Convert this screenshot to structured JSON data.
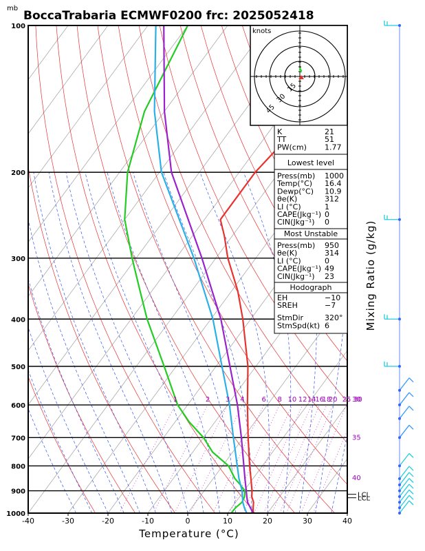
{
  "chart_data": {
    "type": "line",
    "title": "BoccaTrabaria ECMWF0200 frc: 2025052418",
    "y_unit_label": "mb",
    "xlabel": "Temperature (°C)",
    "right_label": "Mixing Ratio (g/kg)",
    "xlim": [
      -40,
      40
    ],
    "ylim": [
      1000,
      100
    ],
    "y_scale": "log",
    "x_ticks": [
      -40,
      -30,
      -20,
      -10,
      0,
      10,
      20,
      30,
      40
    ],
    "pressure_ticks": [
      100,
      200,
      300,
      400,
      500,
      600,
      700,
      800,
      900,
      1000
    ],
    "skew_deg_per_decade": 90,
    "series": [
      {
        "name": "Temperature",
        "color": "#e8322d",
        "points": [
          [
            1000,
            16.4
          ],
          [
            975,
            15.4
          ],
          [
            950,
            14.5
          ],
          [
            925,
            13.0
          ],
          [
            900,
            12.0
          ],
          [
            850,
            9.5
          ],
          [
            800,
            6.8
          ],
          [
            700,
            1.2
          ],
          [
            600,
            -5.0
          ],
          [
            500,
            -12.0
          ],
          [
            400,
            -22.0
          ],
          [
            350,
            -28.5
          ],
          [
            300,
            -37.0
          ],
          [
            270,
            -42.0
          ],
          [
            250,
            -46.0
          ],
          [
            200,
            -46.0
          ],
          [
            150,
            -43.0
          ],
          [
            100,
            -42.0
          ]
        ]
      },
      {
        "name": "Dewpoint",
        "color": "#22cc22",
        "points": [
          [
            1000,
            10.9
          ],
          [
            975,
            11.0
          ],
          [
            950,
            11.6
          ],
          [
            925,
            11.2
          ],
          [
            900,
            10.2
          ],
          [
            870,
            7.5
          ],
          [
            850,
            5.5
          ],
          [
            800,
            1.5
          ],
          [
            750,
            -5.0
          ],
          [
            700,
            -10.0
          ],
          [
            650,
            -16.5
          ],
          [
            600,
            -22.5
          ],
          [
            500,
            -33.0
          ],
          [
            400,
            -46.0
          ],
          [
            350,
            -53.0
          ],
          [
            300,
            -61.0
          ],
          [
            250,
            -70.0
          ],
          [
            200,
            -78.0
          ],
          [
            150,
            -85.0
          ],
          [
            100,
            -90.0
          ]
        ]
      },
      {
        "name": "Parcel",
        "color": "#9922cc",
        "points": [
          [
            1000,
            16.4
          ],
          [
            950,
            13.0
          ],
          [
            930,
            12.0
          ],
          [
            850,
            8.0
          ],
          [
            700,
            -0.5
          ],
          [
            600,
            -7.5
          ],
          [
            500,
            -16.5
          ],
          [
            400,
            -27.5
          ],
          [
            300,
            -43.5
          ],
          [
            200,
            -67.0
          ],
          [
            150,
            -80.0
          ],
          [
            100,
            -96.0
          ]
        ]
      },
      {
        "name": "Virtual Temperature",
        "color": "#2ab0e6",
        "points": [
          [
            1000,
            14.8
          ],
          [
            975,
            13.2
          ],
          [
            950,
            11.8
          ],
          [
            900,
            9.5
          ],
          [
            850,
            6.5
          ],
          [
            700,
            -2.5
          ],
          [
            600,
            -9.5
          ],
          [
            500,
            -18.5
          ],
          [
            400,
            -29.5
          ],
          [
            300,
            -45.5
          ],
          [
            200,
            -69.5
          ],
          [
            150,
            -82.5
          ],
          [
            100,
            -98.0
          ]
        ]
      }
    ],
    "mixing_ratio_labels": [
      "1",
      "2",
      "3",
      "4",
      "6",
      "8",
      "10",
      "12",
      "14",
      "16",
      "18",
      "20",
      "25",
      "30"
    ],
    "theta_labels": [
      "30",
      "35",
      "40"
    ],
    "lcl_labels": [
      "LCL",
      "LCL"
    ],
    "hodograph": {
      "unit_label": "knots",
      "rings": [
        "15",
        "30",
        "45"
      ],
      "segments": [
        [
          -0.5,
          -8
        ],
        [
          0.5,
          -12
        ],
        [
          -1.5,
          -14
        ],
        [
          -2.5,
          -12
        ],
        [
          -3,
          -15
        ],
        [
          -1,
          -18
        ]
      ],
      "storm_motion_kt": 6,
      "storm_dir_deg": 320
    },
    "index_panel": {
      "general": [
        [
          "K",
          "21"
        ],
        [
          "TT",
          "51"
        ],
        [
          "PW(cm)",
          "1.77"
        ]
      ],
      "lowest_title": "Lowest level",
      "lowest": [
        [
          "Press(mb)",
          "1000"
        ],
        [
          "Temp(°C)",
          "16.4"
        ],
        [
          "Dewp(°C)",
          "10.9"
        ],
        [
          "θe(K)",
          "312"
        ],
        [
          "LI (°C)",
          "1"
        ],
        [
          "CAPE(Jkg⁻¹)",
          "0"
        ],
        [
          "CIN(Jkg⁻¹)",
          "0"
        ]
      ],
      "unstable_title": "Most Unstable",
      "unstable": [
        [
          "Press(mb)",
          "950"
        ],
        [
          "θe(K)",
          "314"
        ],
        [
          "LI (°C)",
          "0"
        ],
        [
          "CAPE(Jkg⁻¹)",
          "49"
        ],
        [
          "CIN(Jkg⁻¹)",
          "23"
        ]
      ],
      "hodo_title": "Hodograph",
      "hodo": [
        [
          "EH",
          "−10"
        ],
        [
          "SREH",
          "−7"
        ],
        [
          "StmDir",
          "320°"
        ],
        [
          "StmSpd(kt)",
          "6"
        ]
      ]
    },
    "wind_barb_pressures": [
      100,
      250,
      400,
      500,
      560,
      600,
      640,
      700,
      800,
      850,
      875,
      900,
      925,
      950,
      975,
      1000
    ]
  }
}
